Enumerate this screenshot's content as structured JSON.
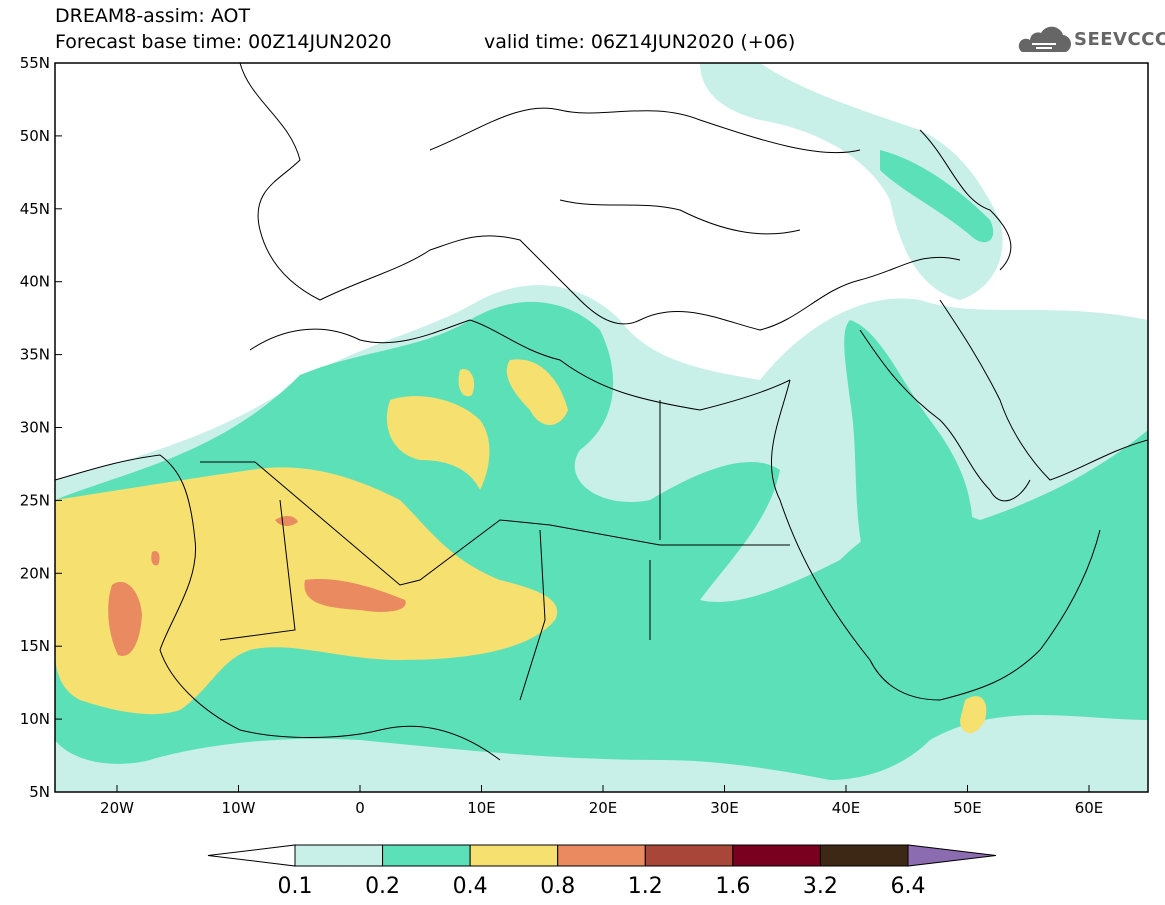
{
  "header": {
    "title": "DREAM8-assim: AOT",
    "base_time": "Forecast base time: 00Z14JUN2020",
    "valid_time": "valid time: 06Z14JUN2020 (+06)"
  },
  "logo": {
    "text": "SEEVCCC",
    "icon": "cloud-icon"
  },
  "map": {
    "lat_labels": [
      "55N",
      "50N",
      "45N",
      "40N",
      "35N",
      "30N",
      "25N",
      "20N",
      "15N",
      "10N",
      "5N"
    ],
    "lon_labels": [
      "20W",
      "10W",
      "0",
      "10E",
      "20E",
      "30E",
      "40E",
      "50E",
      "60E"
    ]
  },
  "colorbar": {
    "labels": [
      "0.1",
      "0.2",
      "0.4",
      "0.8",
      "1.2",
      "1.6",
      "3.2",
      "6.4"
    ],
    "colors": [
      "#ffffff",
      "#c8f0e8",
      "#5ce0b8",
      "#f5e070",
      "#e98a60",
      "#a8463a",
      "#7a0020",
      "#3d2816",
      "#8c6cb0"
    ]
  },
  "colors": {
    "level_01": "#c8f0e8",
    "level_02": "#5ce0b8",
    "level_04": "#f5e070",
    "level_08": "#e98a60"
  }
}
